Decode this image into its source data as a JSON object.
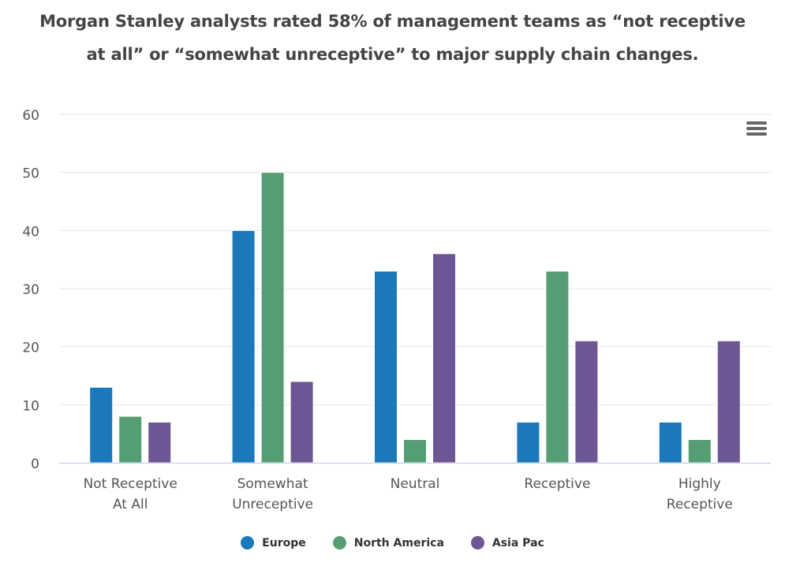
{
  "title_lines": [
    "Morgan Stanley analysts rated 58% of management teams as “not receptive",
    "at all” or “somewhat unreceptive” to major supply chain changes."
  ],
  "menu": {
    "icon": "hamburger-menu-icon"
  },
  "chart_data": {
    "type": "bar",
    "title": "Morgan Stanley analysts rated 58% of management teams as “not receptive at all” or “somewhat unreceptive” to major supply chain changes.",
    "categories": [
      [
        "Not Receptive",
        "At All"
      ],
      [
        "Somewhat",
        "Unreceptive"
      ],
      [
        "Neutral"
      ],
      [
        "Receptive"
      ],
      [
        "Highly",
        "Receptive"
      ]
    ],
    "series": [
      {
        "name": "Europe",
        "color": "#1a78bb",
        "values": [
          13,
          40,
          33,
          7,
          7
        ]
      },
      {
        "name": "North America",
        "color": "#559e73",
        "values": [
          8,
          50,
          4,
          33,
          4
        ]
      },
      {
        "name": "Asia Pac",
        "color": "#6c5694",
        "values": [
          7,
          14,
          36,
          21,
          21
        ]
      }
    ],
    "xlabel": "",
    "ylabel": "",
    "ylim": [
      0,
      60
    ],
    "yticks": [
      0,
      10,
      20,
      30,
      40,
      50,
      60
    ],
    "grid": true,
    "legend": "bottom-center"
  }
}
